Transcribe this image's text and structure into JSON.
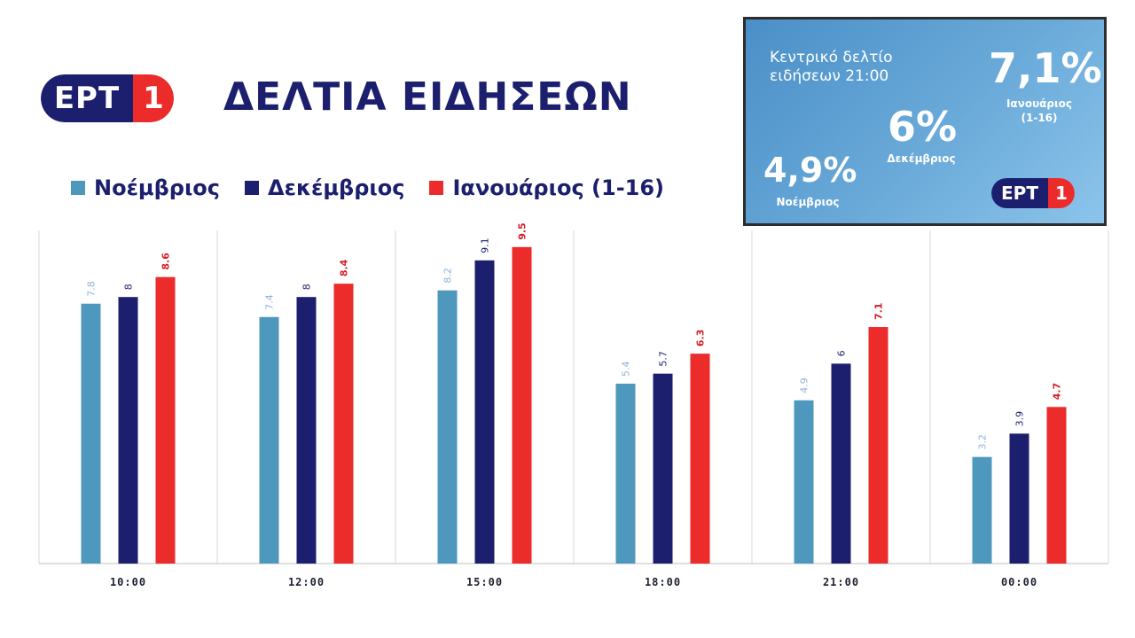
{
  "header": {
    "logo_left": "ΕΡΤ",
    "logo_right": "1",
    "title": "ΔΕΛΤΙΑ ΕΙΔΗΣΕΩΝ"
  },
  "card": {
    "title": "Κεντρικό δελτίο ειδήσεων 21:00",
    "nov_value": "4,9%",
    "nov_label": "Νοέμβριος",
    "dec_value": "6%",
    "dec_label": "Δεκέμβριος",
    "jan_value": "7,1%",
    "jan_label_line1": "Ιανουάριος",
    "jan_label_line2": "(1-16)",
    "logo_left": "ΕΡΤ",
    "logo_right": "1"
  },
  "colors": {
    "nov": "#4f98bd",
    "dec": "#1b1f6e",
    "jan": "#ec2b2b",
    "nov_label": "#8fb3d9",
    "dec_label": "#1b1f6e",
    "jan_label": "#d41f26",
    "grid": "#d9d9d9",
    "axis": "#bfbfbf",
    "tick_text": "#1b1f2e"
  },
  "chart_data": {
    "type": "bar",
    "categories": [
      "10:00",
      "12:00",
      "15:00",
      "18:00",
      "21:00",
      "00:00"
    ],
    "series": [
      {
        "name": "Νοέμβριος",
        "values": [
          7.8,
          7.4,
          8.2,
          5.4,
          4.9,
          3.2
        ],
        "labels": [
          "7.8",
          "7.4",
          "8.2",
          "5.4",
          "4.9",
          "3.2"
        ]
      },
      {
        "name": "Δεκέμβριος",
        "values": [
          8,
          8,
          9.1,
          5.7,
          6,
          3.9
        ],
        "labels": [
          "8",
          "8",
          "9.1",
          "5.7",
          "6",
          "3.9"
        ]
      },
      {
        "name": "Ιανουάριος (1-16)",
        "values": [
          8.6,
          8.4,
          9.5,
          6.3,
          7.1,
          4.7
        ],
        "labels": [
          "8.6",
          "8.4",
          "9.5",
          "6.3",
          "7.1",
          "4.7"
        ]
      }
    ],
    "ylim": [
      0,
      10
    ],
    "grid": "vertical separators",
    "legend": "top-left"
  }
}
